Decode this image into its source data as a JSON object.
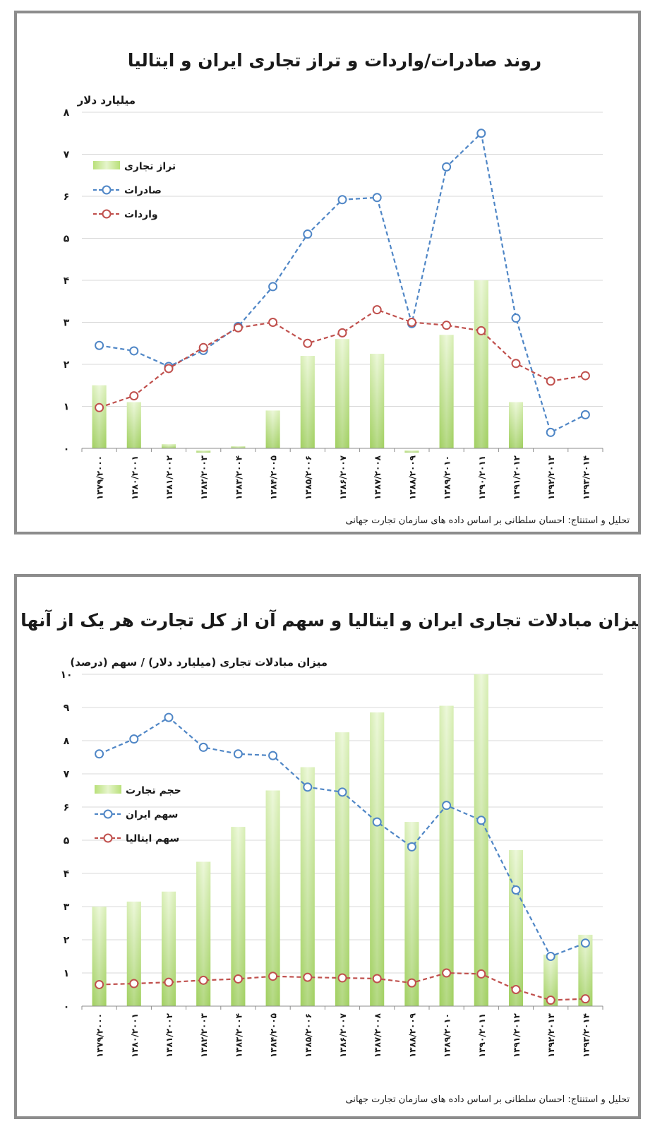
{
  "chart_data": [
    {
      "type": "bar",
      "title": "روند صادرات/واردات و تراز تجاری ایران و ایتالیا",
      "ylabel": "میلیارد دلار",
      "ylim": [
        0,
        8
      ],
      "yticks": [
        "۰",
        "۱",
        "۲",
        "۳",
        "۴",
        "۵",
        "۶",
        "۷",
        "۸"
      ],
      "grid": true,
      "legend_position": "top-left",
      "categories": [
        "۱۳۷۹/۲۰۰۰",
        "۱۳۸۰/۲۰۰۱",
        "۱۳۸۱/۲۰۰۲",
        "۱۳۸۲/۲۰۰۳",
        "۱۳۸۳/۲۰۰۴",
        "۱۳۸۴/۲۰۰۵",
        "۱۳۸۵/۲۰۰۶",
        "۱۳۸۶/۲۰۰۷",
        "۱۳۸۷/۲۰۰۸",
        "۱۳۸۸/۲۰۰۹",
        "۱۳۸۹/۲۰۱۰",
        "۱۳۹۰/۲۰۱۱",
        "۱۳۹۱/۲۰۱۲",
        "۱۳۹۲/۲۰۱۳",
        "۱۳۹۳/۲۰۱۴"
      ],
      "series": [
        {
          "name": "تراز تجاری",
          "kind": "bar",
          "color": "#9ccf5e",
          "values": [
            1.5,
            1.1,
            0.1,
            -0.05,
            0.05,
            0.9,
            2.2,
            2.6,
            2.25,
            -0.05,
            2.7,
            4.0,
            1.1,
            null,
            null
          ]
        },
        {
          "name": "صادرات",
          "kind": "line",
          "color": "#4f86c6",
          "values": [
            2.45,
            2.32,
            1.95,
            2.33,
            2.9,
            3.85,
            5.1,
            5.92,
            5.97,
            2.97,
            6.7,
            7.5,
            3.1,
            0.38,
            0.8
          ]
        },
        {
          "name": "واردات",
          "kind": "line",
          "color": "#c0504d",
          "values": [
            0.97,
            1.25,
            1.9,
            2.4,
            2.87,
            3.0,
            2.5,
            2.75,
            3.3,
            3.0,
            2.93,
            2.8,
            2.02,
            1.6,
            1.73
          ]
        }
      ],
      "source": "تحلیل و استنتاج: احسان سلطانی بر اساس داده های سازمان تجارت جهانی"
    },
    {
      "type": "bar",
      "title": "میزان مبادلات تجاری ایران و ایتالیا و سهم آن از کل تجارت هر یک از آنها",
      "ylabel": "میزان مبادلات تجاری (میلیارد دلار) / سهم (درصد)",
      "ylim": [
        0,
        10
      ],
      "yticks": [
        "۰",
        "۱",
        "۲",
        "۳",
        "۴",
        "۵",
        "۶",
        "۷",
        "۸",
        "۹",
        "۱۰"
      ],
      "grid": true,
      "legend_position": "middle-left",
      "categories": [
        "۱۳۷۹/۲۰۰۰",
        "۱۳۸۰/۲۰۰۱",
        "۱۳۸۱/۲۰۰۲",
        "۱۳۸۲/۲۰۰۳",
        "۱۳۸۳/۲۰۰۴",
        "۱۳۸۴/۲۰۰۵",
        "۱۳۸۵/۲۰۰۶",
        "۱۳۸۶/۲۰۰۷",
        "۱۳۸۷/۲۰۰۸",
        "۱۳۸۸/۲۰۰۹",
        "۱۳۸۹/۲۰۱۰",
        "۱۳۹۰/۲۰۱۱",
        "۱۳۹۱/۲۰۱۲",
        "۱۳۹۲/۲۰۱۳",
        "۱۳۹۳/۲۰۱۴"
      ],
      "series": [
        {
          "name": "حجم تجارت",
          "kind": "bar",
          "color": "#9ccf5e",
          "values": [
            3.0,
            3.15,
            3.45,
            4.35,
            5.4,
            6.5,
            7.2,
            8.25,
            8.85,
            5.55,
            9.05,
            10.0,
            4.7,
            1.55,
            2.15
          ]
        },
        {
          "name": "سهم ایران",
          "kind": "line",
          "color": "#4f86c6",
          "values": [
            7.6,
            8.05,
            8.7,
            7.8,
            7.6,
            7.55,
            6.6,
            6.45,
            5.55,
            4.8,
            6.05,
            5.6,
            3.5,
            1.5,
            1.9
          ]
        },
        {
          "name": "سهم ایتالیا",
          "kind": "line",
          "color": "#c0504d",
          "values": [
            0.65,
            0.68,
            0.72,
            0.78,
            0.82,
            0.9,
            0.87,
            0.85,
            0.83,
            0.7,
            1.0,
            0.97,
            0.5,
            0.18,
            0.22
          ]
        }
      ],
      "source": "تحلیل و استنتاج: احسان سلطانی بر اساس داده های سازمان تجارت جهانی"
    }
  ]
}
